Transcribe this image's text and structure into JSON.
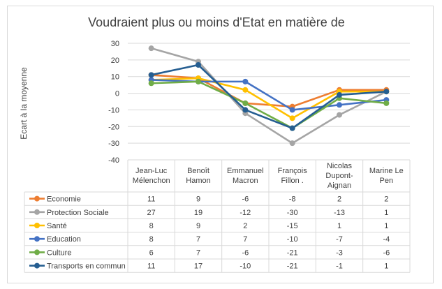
{
  "chart_data": {
    "type": "line",
    "title": "Voudraient plus ou moins d'Etat en matière de",
    "ylabel": "Ecart à la moyenne",
    "xlabel": "",
    "ylim": [
      -40,
      30
    ],
    "yticks": [
      30,
      20,
      10,
      0,
      -10,
      -20,
      -30,
      -40
    ],
    "grid": true,
    "legend": "data-table",
    "categories": [
      "Jean-Luc Mélenchon",
      "Benoît Hamon",
      "Emmanuel Macron",
      "François Fillon .",
      "Nicolas Dupont-Aignan",
      "Marine Le Pen"
    ],
    "category_lines": [
      [
        "Jean-Luc",
        "Mélenchon"
      ],
      [
        "Benoît",
        "Hamon"
      ],
      [
        "Emmanuel",
        "Macron"
      ],
      [
        "François",
        "Fillon ."
      ],
      [
        "Nicolas",
        "Dupont-",
        "Aignan"
      ],
      [
        "Marine Le",
        "Pen"
      ]
    ],
    "series": [
      {
        "name": "Economie",
        "color": "#ed7d31",
        "values": [
          11,
          9,
          -6,
          -8,
          2,
          2
        ]
      },
      {
        "name": "Protection Sociale",
        "color": "#a5a5a5",
        "values": [
          27,
          19,
          -12,
          -30,
          -13,
          1
        ]
      },
      {
        "name": "Santé",
        "color": "#ffc000",
        "values": [
          8,
          9,
          2,
          -15,
          1,
          1
        ]
      },
      {
        "name": "Education",
        "color": "#4472c4",
        "values": [
          8,
          7,
          7,
          -10,
          -7,
          -4
        ]
      },
      {
        "name": "Culture",
        "color": "#70ad47",
        "values": [
          6,
          7,
          -6,
          -21,
          -3,
          -6
        ]
      },
      {
        "name": "Transports en commun",
        "color": "#255e91",
        "values": [
          11,
          17,
          -10,
          -21,
          -1,
          1
        ]
      }
    ]
  }
}
